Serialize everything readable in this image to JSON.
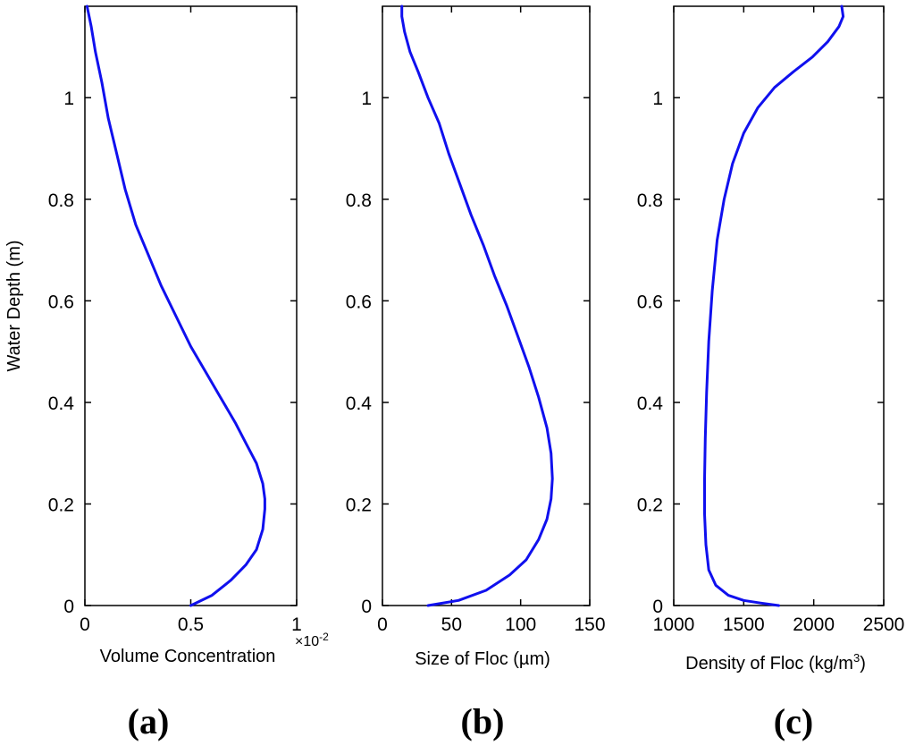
{
  "figure": {
    "panel_labels": [
      "(a)",
      "(b)",
      "(c)"
    ],
    "line_color": "#1010ee"
  },
  "chart_data": [
    {
      "type": "line",
      "panel": "a",
      "xlabel": "Volume Concentration",
      "ylabel": "Water Depth (m)",
      "x_multiplier_label": "×10",
      "x_multiplier_exponent": "-2",
      "xlim": [
        0,
        1
      ],
      "ylim": [
        0,
        1.18
      ],
      "xticks": [
        0,
        0.5,
        1
      ],
      "xtick_labels": [
        "0",
        "0.5",
        "1"
      ],
      "yticks": [
        0,
        0.2,
        0.4,
        0.6,
        0.8,
        1
      ],
      "ytick_labels": [
        "0",
        "0.2",
        "0.4",
        "0.6",
        "0.8",
        "1"
      ],
      "series": [
        {
          "name": "Volume Concentration",
          "x": [
            0.5,
            0.6,
            0.69,
            0.76,
            0.81,
            0.84,
            0.85,
            0.85,
            0.84,
            0.81,
            0.76,
            0.71,
            0.64,
            0.57,
            0.5,
            0.43,
            0.36,
            0.3,
            0.24,
            0.19,
            0.15,
            0.11,
            0.08,
            0.05,
            0.03,
            0.01
          ],
          "y": [
            0.0,
            0.02,
            0.05,
            0.08,
            0.11,
            0.15,
            0.19,
            0.21,
            0.24,
            0.28,
            0.32,
            0.36,
            0.41,
            0.46,
            0.51,
            0.57,
            0.63,
            0.69,
            0.75,
            0.82,
            0.89,
            0.96,
            1.03,
            1.09,
            1.14,
            1.18
          ]
        }
      ]
    },
    {
      "type": "line",
      "panel": "b",
      "xlabel": "Size of Floc (µm)",
      "ylabel": "",
      "xlim": [
        0,
        150
      ],
      "ylim": [
        0,
        1.18
      ],
      "xticks": [
        0,
        50,
        100,
        150
      ],
      "xtick_labels": [
        "0",
        "50",
        "100",
        "150"
      ],
      "yticks": [
        0,
        0.2,
        0.4,
        0.6,
        0.8,
        1
      ],
      "ytick_labels": [
        "0",
        "0.2",
        "0.4",
        "0.6",
        "0.8",
        "1"
      ],
      "series": [
        {
          "name": "Size of Floc",
          "x": [
            33,
            55,
            75,
            92,
            104,
            113,
            119,
            122,
            123,
            122,
            119,
            113,
            106,
            98,
            90,
            81,
            73,
            64,
            56,
            48,
            41,
            33,
            26,
            20,
            16,
            14,
            14
          ],
          "y": [
            0.0,
            0.01,
            0.03,
            0.06,
            0.09,
            0.13,
            0.17,
            0.21,
            0.25,
            0.3,
            0.35,
            0.41,
            0.47,
            0.53,
            0.59,
            0.65,
            0.71,
            0.77,
            0.83,
            0.89,
            0.95,
            1.0,
            1.05,
            1.09,
            1.13,
            1.16,
            1.18
          ]
        }
      ]
    },
    {
      "type": "line",
      "panel": "c",
      "xlabel": "Density of Floc (kg/m",
      "xlabel_superscript": "3",
      "xlabel_suffix": ")",
      "ylabel": "",
      "xlim": [
        1000,
        2500
      ],
      "ylim": [
        0,
        1.18
      ],
      "xticks": [
        1000,
        1500,
        2000,
        2500
      ],
      "xtick_labels": [
        "1000",
        "1500",
        "2000",
        "2500"
      ],
      "yticks": [
        0,
        0.2,
        0.4,
        0.6,
        0.8,
        1
      ],
      "ytick_labels": [
        "0",
        "0.2",
        "0.4",
        "0.6",
        "0.8",
        "1"
      ],
      "series": [
        {
          "name": "Density of Floc",
          "x": [
            1750,
            1620,
            1500,
            1390,
            1300,
            1250,
            1230,
            1220,
            1220,
            1225,
            1235,
            1250,
            1275,
            1310,
            1360,
            1420,
            1500,
            1600,
            1720,
            1850,
            1990,
            2100,
            2180,
            2210,
            2200
          ],
          "y": [
            0.0,
            0.005,
            0.01,
            0.02,
            0.04,
            0.07,
            0.12,
            0.18,
            0.25,
            0.33,
            0.42,
            0.52,
            0.62,
            0.72,
            0.8,
            0.87,
            0.93,
            0.98,
            1.02,
            1.05,
            1.08,
            1.11,
            1.14,
            1.16,
            1.18
          ]
        }
      ]
    }
  ]
}
